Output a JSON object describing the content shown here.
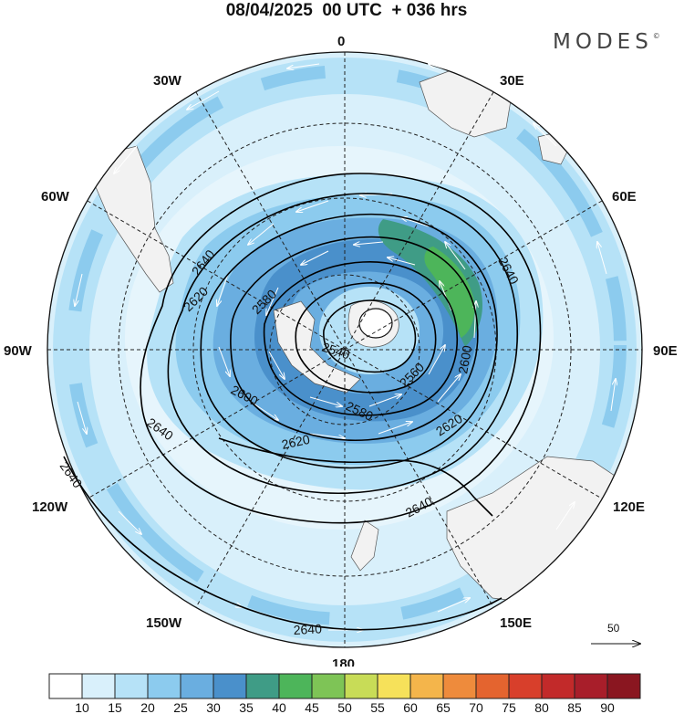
{
  "header": {
    "title": "08/04/2025  00 UTC  + 036 hrs",
    "brand": "MODES",
    "brand_mark": "©"
  },
  "map": {
    "projection": "south-polar-stereographic",
    "longitude_labels": {
      "0": "0",
      "30E": "30E",
      "60E": "60E",
      "90E": "90E",
      "120E": "120E",
      "150E": "150E",
      "180": "180",
      "150W": "150W",
      "120W": "120W",
      "90W": "90W",
      "60W": "60W",
      "30W": "30W"
    },
    "contour_labels": {
      "c2640a": "2640",
      "c2640b": "2640",
      "c2640c": "2640",
      "c2640d": "2640",
      "c2640e": "2640",
      "c2640f": "2640",
      "c2620a": "2620",
      "c2620b": "2620",
      "c2620c": "2620",
      "c2600a": "2600",
      "c2600b": "2600",
      "c2580a": "2580",
      "c2580b": "2580",
      "c2560": "2560",
      "c2540": "2540"
    },
    "wind_reference": {
      "label": "50"
    },
    "land_color": "#f2f2f2",
    "contour_color": "#000000"
  },
  "legend": {
    "colors": [
      "#ffffff",
      "#d9f0fb",
      "#b6e2f7",
      "#8ccbee",
      "#6aaee0",
      "#4a90cb",
      "#3f9c86",
      "#4db55a",
      "#7ec456",
      "#c8dc57",
      "#f6e15a",
      "#f4b54b",
      "#ee8b3c",
      "#e4642f",
      "#d83f2b",
      "#c22a2a",
      "#a81e2a",
      "#8a1620"
    ],
    "ticks": [
      "10",
      "15",
      "20",
      "25",
      "30",
      "35",
      "40",
      "45",
      "50",
      "55",
      "60",
      "65",
      "70",
      "75",
      "80",
      "85",
      "90"
    ]
  }
}
